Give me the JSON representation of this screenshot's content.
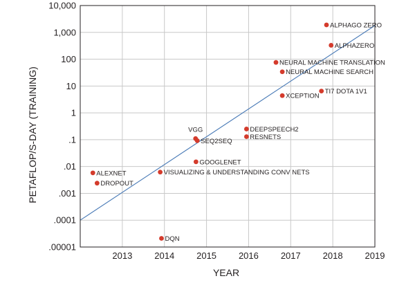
{
  "chart_data": {
    "type": "scatter",
    "title": "",
    "xlabel": "YEAR",
    "ylabel": "PETAFLOP/S-DAY (TRAINING)",
    "y_scale": "log",
    "xlim": [
      2012,
      2019
    ],
    "ylim": [
      1e-05,
      10000
    ],
    "grid": true,
    "x_ticks": [
      {
        "value": 2013,
        "label": "2013"
      },
      {
        "value": 2014,
        "label": "2014"
      },
      {
        "value": 2015,
        "label": "2015"
      },
      {
        "value": 2016,
        "label": "2016"
      },
      {
        "value": 2017,
        "label": "2017"
      },
      {
        "value": 2018,
        "label": "2018"
      },
      {
        "value": 2019,
        "label": "2019"
      }
    ],
    "y_ticks": [
      {
        "value": 10000,
        "label": "10,000"
      },
      {
        "value": 1000,
        "label": "1,000"
      },
      {
        "value": 100,
        "label": "100"
      },
      {
        "value": 10,
        "label": "10"
      },
      {
        "value": 1,
        "label": "1"
      },
      {
        "value": 0.1,
        "label": ".1"
      },
      {
        "value": 0.01,
        "label": ".01"
      },
      {
        "value": 0.001,
        "label": ".001"
      },
      {
        "value": 0.0001,
        "label": ".0001"
      },
      {
        "value": 1e-05,
        "label": ".00001"
      }
    ],
    "points": [
      {
        "name": "ALEXNET",
        "x": 2012.3,
        "y": 0.0058,
        "label_side": "right"
      },
      {
        "name": "DROPOUT",
        "x": 2012.4,
        "y": 0.0024,
        "label_side": "right"
      },
      {
        "name": "DQN",
        "x": 2013.93,
        "y": 2.1e-05,
        "label_side": "right"
      },
      {
        "name": "VISUALIZING & UNDERSTANDING CONV NETS",
        "x": 2013.9,
        "y": 0.0062,
        "label_side": "right"
      },
      {
        "name": "GOOGLENET",
        "x": 2014.75,
        "y": 0.015,
        "label_side": "right"
      },
      {
        "name": "VGG",
        "x": 2014.74,
        "y": 0.11,
        "label_side": "above"
      },
      {
        "name": "SEQ2SEQ",
        "x": 2014.78,
        "y": 0.092,
        "label_side": "right"
      },
      {
        "name": "DEEPSPEECH2",
        "x": 2015.95,
        "y": 0.25,
        "label_side": "right"
      },
      {
        "name": "RESNETS",
        "x": 2015.95,
        "y": 0.13,
        "label_side": "right"
      },
      {
        "name": "XCEPTION",
        "x": 2016.8,
        "y": 4.4,
        "label_side": "right"
      },
      {
        "name": "NEURAL MACHINE TRANSLATION",
        "x": 2016.65,
        "y": 76,
        "label_side": "right"
      },
      {
        "name": "NEURAL MACHINE SEARCH",
        "x": 2016.8,
        "y": 34,
        "label_side": "right"
      },
      {
        "name": "TI7 DOTA 1V1",
        "x": 2017.73,
        "y": 6.5,
        "label_side": "right"
      },
      {
        "name": "ALPHAGO ZERO",
        "x": 2017.85,
        "y": 1900,
        "label_side": "right"
      },
      {
        "name": "ALPHAZERO",
        "x": 2017.96,
        "y": 330,
        "label_side": "right"
      }
    ],
    "trend_line": {
      "name": "trend",
      "from": {
        "x": 2012,
        "y": 0.0001
      },
      "to": {
        "x": 2019,
        "y": 1800
      }
    },
    "colors": {
      "point": "#d43b2c",
      "trend": "#4a7bb7",
      "grid": "#c8c8c8",
      "frame": "#231f20"
    }
  }
}
